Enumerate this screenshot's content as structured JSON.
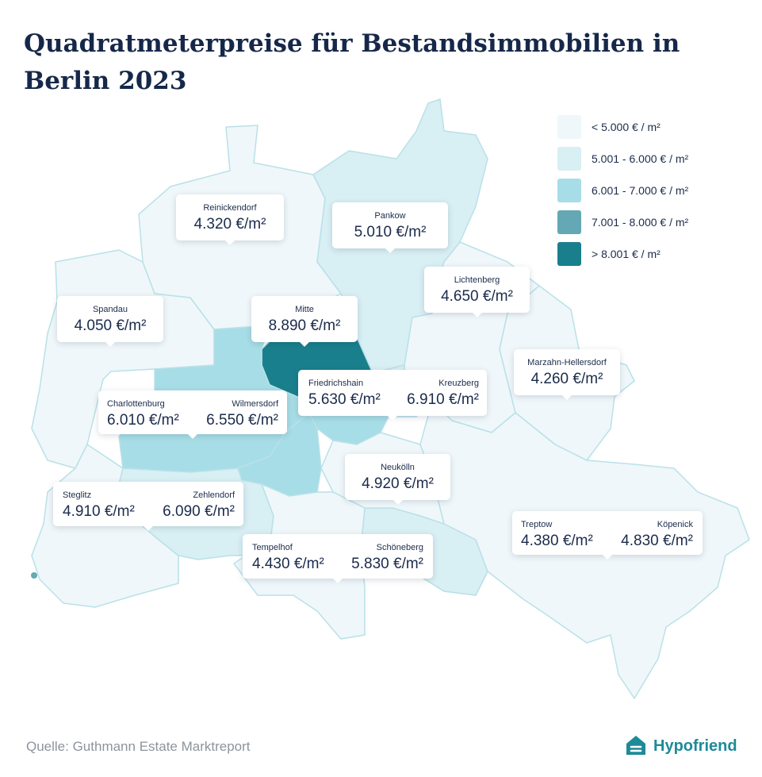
{
  "title": "Quadratmeterpreise für Bestandsimmobilien in Berlin 2023",
  "legend": [
    {
      "label": "< 5.000 € / m²",
      "color": "#eff7fa"
    },
    {
      "label": "5.001 - 6.000 € / m²",
      "color": "#d8eff4"
    },
    {
      "label": "6.001 - 7.000 € / m²",
      "color": "#a7dde6"
    },
    {
      "label": "7.001 - 8.000 € / m²",
      "color": "#63a8b4"
    },
    {
      "label": "> 8.001 € / m²",
      "color": "#1a7f8c"
    }
  ],
  "districts": {
    "reinickendorf": {
      "name": "Reinickendorf",
      "price": "4.320 €/m²"
    },
    "pankow": {
      "name": "Pankow",
      "price": "5.010 €/m²"
    },
    "lichtenberg": {
      "name": "Lichtenberg",
      "price": "4.650 €/m²"
    },
    "spandau": {
      "name": "Spandau",
      "price": "4.050 €/m²"
    },
    "mitte": {
      "name": "Mitte",
      "price": "8.890 €/m²"
    },
    "friedrichshain": {
      "name": "Friedrichshain",
      "price": "5.630 €/m²"
    },
    "kreuzberg": {
      "name": "Kreuzberg",
      "price": "6.910 €/m²"
    },
    "marzahn": {
      "name": "Marzahn-Hellersdorf",
      "price": "4.260 €/m²"
    },
    "charlottenburg": {
      "name": "Charlottenburg",
      "price": "6.010 €/m²"
    },
    "wilmersdorf": {
      "name": "Wilmersdorf",
      "price": "6.550 €/m²"
    },
    "neukoelln": {
      "name": "Neukölln",
      "price": "4.920 €/m²"
    },
    "steglitz": {
      "name": "Steglitz",
      "price": "4.910 €/m²"
    },
    "zehlendorf": {
      "name": "Zehlendorf",
      "price": "6.090 €/m²"
    },
    "treptow": {
      "name": "Treptow",
      "price": "4.380 €/m²"
    },
    "koepenick": {
      "name": "Köpenick",
      "price": "4.830 €/m²"
    },
    "tempelhof": {
      "name": "Tempelhof",
      "price": "4.430 €/m²"
    },
    "schoeneberg": {
      "name": "Schöneberg",
      "price": "5.830 €/m²"
    }
  },
  "source": "Quelle: Guthmann Estate Marktreport",
  "logo": {
    "text": "Hypofriend",
    "icon": "house-icon"
  }
}
